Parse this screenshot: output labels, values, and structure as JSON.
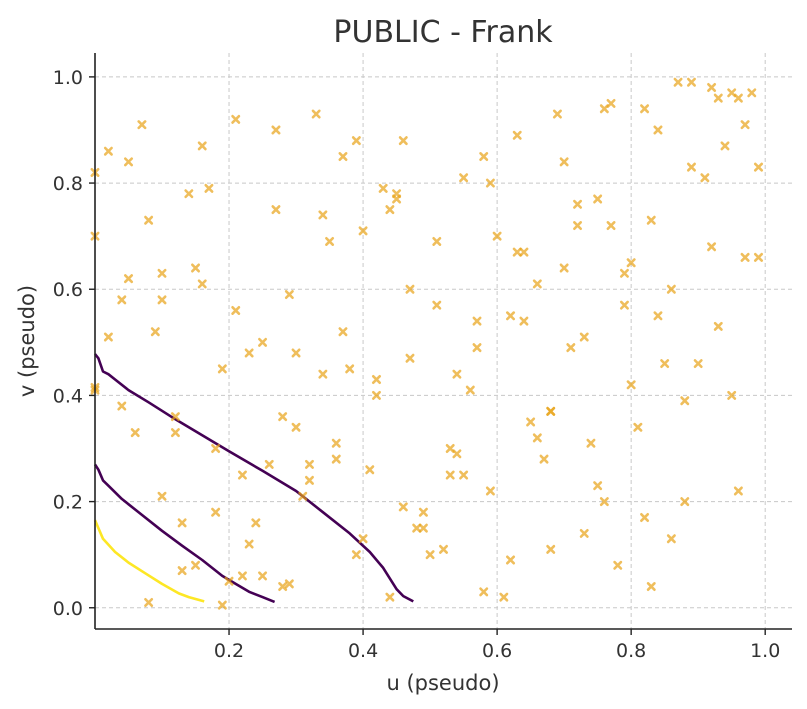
{
  "chart_data": {
    "type": "scatter",
    "title": "PUBLIC - Frank",
    "xlabel": "u (pseudo)",
    "ylabel": "v (pseudo)",
    "xlim": [
      0.0,
      1.04
    ],
    "ylim": [
      -0.04,
      1.045
    ],
    "xticks": [
      0.2,
      0.4,
      0.6,
      0.8,
      1.0
    ],
    "yticks": [
      0.0,
      0.2,
      0.4,
      0.6,
      0.8,
      1.0
    ],
    "xtick_labels": [
      "0.2",
      "0.4",
      "0.6",
      "0.8",
      "1.0"
    ],
    "ytick_labels": [
      "0.0",
      "0.2",
      "0.4",
      "0.6",
      "0.8",
      "1.0"
    ],
    "grid": true,
    "colors": {
      "points": "#e8a317",
      "contour_dark": "#440154",
      "contour_mid": "#440154",
      "contour_light": "#fde725"
    },
    "contours": [
      {
        "color": "#440154",
        "points": [
          [
            0.0,
            0.478
          ],
          [
            0.005,
            0.47
          ],
          [
            0.012,
            0.445
          ],
          [
            0.02,
            0.44
          ],
          [
            0.03,
            0.43
          ],
          [
            0.05,
            0.41
          ],
          [
            0.08,
            0.387
          ],
          [
            0.12,
            0.355
          ],
          [
            0.16,
            0.325
          ],
          [
            0.2,
            0.295
          ],
          [
            0.25,
            0.258
          ],
          [
            0.3,
            0.22
          ],
          [
            0.34,
            0.18
          ],
          [
            0.38,
            0.14
          ],
          [
            0.41,
            0.105
          ],
          [
            0.43,
            0.075
          ],
          [
            0.44,
            0.055
          ],
          [
            0.45,
            0.035
          ],
          [
            0.46,
            0.022
          ],
          [
            0.475,
            0.012
          ]
        ]
      },
      {
        "color": "#440154",
        "points": [
          [
            0.0,
            0.27
          ],
          [
            0.005,
            0.26
          ],
          [
            0.012,
            0.24
          ],
          [
            0.02,
            0.23
          ],
          [
            0.04,
            0.205
          ],
          [
            0.07,
            0.175
          ],
          [
            0.1,
            0.145
          ],
          [
            0.13,
            0.117
          ],
          [
            0.16,
            0.09
          ],
          [
            0.19,
            0.06
          ],
          [
            0.21,
            0.045
          ],
          [
            0.23,
            0.03
          ],
          [
            0.25,
            0.02
          ],
          [
            0.268,
            0.011
          ]
        ]
      },
      {
        "color": "#fde725",
        "points": [
          [
            0.0,
            0.165
          ],
          [
            0.005,
            0.15
          ],
          [
            0.012,
            0.13
          ],
          [
            0.03,
            0.105
          ],
          [
            0.05,
            0.085
          ],
          [
            0.075,
            0.065
          ],
          [
            0.1,
            0.045
          ],
          [
            0.125,
            0.027
          ],
          [
            0.14,
            0.02
          ],
          [
            0.163,
            0.012
          ]
        ]
      }
    ],
    "points": [
      [
        0.0,
        0.82
      ],
      [
        0.0,
        0.7
      ],
      [
        0.0,
        0.41
      ],
      [
        0.0,
        0.415
      ],
      [
        0.02,
        0.86
      ],
      [
        0.02,
        0.51
      ],
      [
        0.04,
        0.58
      ],
      [
        0.04,
        0.38
      ],
      [
        0.05,
        0.84
      ],
      [
        0.05,
        0.62
      ],
      [
        0.06,
        0.33
      ],
      [
        0.07,
        0.91
      ],
      [
        0.08,
        0.73
      ],
      [
        0.08,
        0.01
      ],
      [
        0.09,
        0.52
      ],
      [
        0.1,
        0.63
      ],
      [
        0.1,
        0.58
      ],
      [
        0.1,
        0.21
      ],
      [
        0.12,
        0.36
      ],
      [
        0.12,
        0.33
      ],
      [
        0.13,
        0.16
      ],
      [
        0.13,
        0.07
      ],
      [
        0.14,
        0.78
      ],
      [
        0.15,
        0.64
      ],
      [
        0.15,
        0.08
      ],
      [
        0.16,
        0.87
      ],
      [
        0.16,
        0.61
      ],
      [
        0.17,
        0.79
      ],
      [
        0.18,
        0.3
      ],
      [
        0.18,
        0.18
      ],
      [
        0.19,
        0.005
      ],
      [
        0.19,
        0.45
      ],
      [
        0.2,
        0.05
      ],
      [
        0.21,
        0.56
      ],
      [
        0.21,
        0.92
      ],
      [
        0.22,
        0.06
      ],
      [
        0.22,
        0.25
      ],
      [
        0.23,
        0.12
      ],
      [
        0.23,
        0.48
      ],
      [
        0.24,
        0.16
      ],
      [
        0.25,
        0.06
      ],
      [
        0.25,
        0.5
      ],
      [
        0.26,
        0.27
      ],
      [
        0.27,
        0.9
      ],
      [
        0.27,
        0.75
      ],
      [
        0.28,
        0.36
      ],
      [
        0.28,
        0.04
      ],
      [
        0.29,
        0.045
      ],
      [
        0.29,
        0.59
      ],
      [
        0.3,
        0.34
      ],
      [
        0.3,
        0.48
      ],
      [
        0.31,
        0.21
      ],
      [
        0.32,
        0.27
      ],
      [
        0.32,
        0.24
      ],
      [
        0.33,
        0.93
      ],
      [
        0.34,
        0.74
      ],
      [
        0.34,
        0.44
      ],
      [
        0.35,
        0.69
      ],
      [
        0.36,
        0.31
      ],
      [
        0.36,
        0.28
      ],
      [
        0.37,
        0.52
      ],
      [
        0.37,
        0.85
      ],
      [
        0.38,
        0.45
      ],
      [
        0.39,
        0.1
      ],
      [
        0.39,
        0.88
      ],
      [
        0.4,
        0.71
      ],
      [
        0.4,
        0.13
      ],
      [
        0.41,
        0.26
      ],
      [
        0.42,
        0.43
      ],
      [
        0.42,
        0.4
      ],
      [
        0.43,
        0.79
      ],
      [
        0.44,
        0.75
      ],
      [
        0.44,
        0.02
      ],
      [
        0.45,
        0.78
      ],
      [
        0.45,
        0.77
      ],
      [
        0.46,
        0.19
      ],
      [
        0.46,
        0.88
      ],
      [
        0.47,
        0.47
      ],
      [
        0.47,
        0.6
      ],
      [
        0.48,
        0.15
      ],
      [
        0.49,
        0.15
      ],
      [
        0.49,
        0.18
      ],
      [
        0.5,
        0.1
      ],
      [
        0.51,
        0.69
      ],
      [
        0.51,
        0.57
      ],
      [
        0.52,
        0.11
      ],
      [
        0.53,
        0.25
      ],
      [
        0.53,
        0.3
      ],
      [
        0.54,
        0.29
      ],
      [
        0.54,
        0.44
      ],
      [
        0.55,
        0.25
      ],
      [
        0.55,
        0.81
      ],
      [
        0.56,
        0.41
      ],
      [
        0.57,
        0.54
      ],
      [
        0.57,
        0.49
      ],
      [
        0.58,
        0.85
      ],
      [
        0.58,
        0.03
      ],
      [
        0.59,
        0.8
      ],
      [
        0.59,
        0.22
      ],
      [
        0.6,
        0.7
      ],
      [
        0.61,
        0.02
      ],
      [
        0.62,
        0.55
      ],
      [
        0.62,
        0.09
      ],
      [
        0.63,
        0.89
      ],
      [
        0.63,
        0.67
      ],
      [
        0.64,
        0.67
      ],
      [
        0.64,
        0.54
      ],
      [
        0.65,
        0.35
      ],
      [
        0.66,
        0.61
      ],
      [
        0.66,
        0.32
      ],
      [
        0.67,
        0.28
      ],
      [
        0.68,
        0.37
      ],
      [
        0.68,
        0.37
      ],
      [
        0.68,
        0.11
      ],
      [
        0.69,
        0.93
      ],
      [
        0.7,
        0.84
      ],
      [
        0.7,
        0.64
      ],
      [
        0.71,
        0.49
      ],
      [
        0.72,
        0.76
      ],
      [
        0.72,
        0.72
      ],
      [
        0.73,
        0.14
      ],
      [
        0.73,
        0.51
      ],
      [
        0.74,
        0.31
      ],
      [
        0.75,
        0.23
      ],
      [
        0.75,
        0.77
      ],
      [
        0.76,
        0.2
      ],
      [
        0.76,
        0.94
      ],
      [
        0.77,
        0.95
      ],
      [
        0.77,
        0.72
      ],
      [
        0.78,
        0.08
      ],
      [
        0.79,
        0.57
      ],
      [
        0.79,
        0.63
      ],
      [
        0.8,
        0.42
      ],
      [
        0.8,
        0.65
      ],
      [
        0.81,
        0.34
      ],
      [
        0.82,
        0.94
      ],
      [
        0.82,
        0.17
      ],
      [
        0.83,
        0.04
      ],
      [
        0.83,
        0.73
      ],
      [
        0.84,
        0.9
      ],
      [
        0.84,
        0.55
      ],
      [
        0.85,
        0.46
      ],
      [
        0.86,
        0.13
      ],
      [
        0.86,
        0.6
      ],
      [
        0.87,
        0.99
      ],
      [
        0.88,
        0.39
      ],
      [
        0.88,
        0.2
      ],
      [
        0.89,
        0.83
      ],
      [
        0.89,
        0.99
      ],
      [
        0.9,
        0.46
      ],
      [
        0.91,
        0.81
      ],
      [
        0.92,
        0.68
      ],
      [
        0.92,
        0.98
      ],
      [
        0.93,
        0.53
      ],
      [
        0.93,
        0.96
      ],
      [
        0.94,
        0.87
      ],
      [
        0.95,
        0.4
      ],
      [
        0.95,
        0.97
      ],
      [
        0.96,
        0.22
      ],
      [
        0.96,
        0.96
      ],
      [
        0.97,
        0.91
      ],
      [
        0.97,
        0.66
      ],
      [
        0.98,
        0.97
      ],
      [
        0.99,
        0.83
      ],
      [
        0.99,
        0.66
      ]
    ]
  }
}
